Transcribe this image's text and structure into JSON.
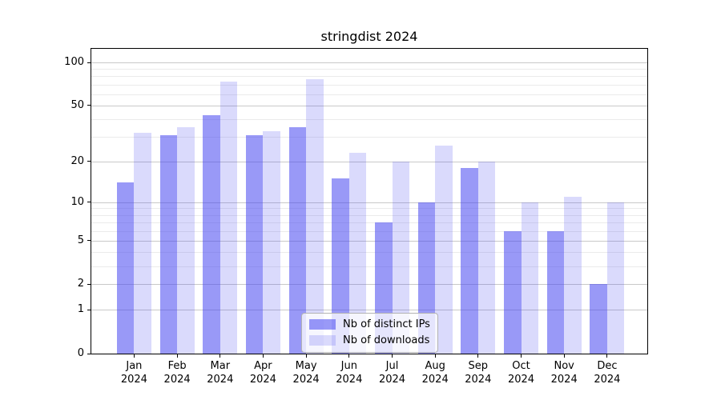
{
  "title": "stringdist 2024",
  "chart_data": {
    "type": "bar",
    "title": "stringdist 2024",
    "categories": [
      "Jan",
      "Feb",
      "Mar",
      "Apr",
      "May",
      "Jun",
      "Jul",
      "Aug",
      "Sep",
      "Oct",
      "Nov",
      "Dec"
    ],
    "year_label": "2024",
    "series": [
      {
        "name": "Nb of distinct IPs",
        "color_base": "#4646F0",
        "fill": "rgba(70,70,240,0.55)",
        "values": [
          14,
          31,
          43,
          31,
          35,
          15,
          7,
          10,
          18,
          6,
          6,
          2
        ]
      },
      {
        "name": "Nb of downloads",
        "color_base": "#4646F0",
        "fill": "rgba(70,70,240,0.20)",
        "values": [
          32,
          35,
          74,
          33,
          76,
          23,
          20,
          26,
          20,
          10,
          11,
          10
        ]
      }
    ],
    "yscale": "log1p",
    "yticks": [
      0,
      1,
      2,
      5,
      10,
      20,
      50,
      100
    ],
    "ytick_labels": [
      "0",
      "1",
      "2",
      "5",
      "10",
      "20",
      "50",
      "100"
    ],
    "minor_gridlines": [
      3,
      4,
      6,
      7,
      8,
      9,
      30,
      40,
      60,
      70,
      80,
      90
    ],
    "ylim": [
      0,
      125
    ],
    "xlabel": "",
    "ylabel": "",
    "grid": true,
    "legend_position": "bottom-center",
    "colors": {
      "major_grid": "#c9c9c9",
      "minor_grid": "#ebebeb",
      "axis": "#000000",
      "background": "#ffffff"
    }
  }
}
